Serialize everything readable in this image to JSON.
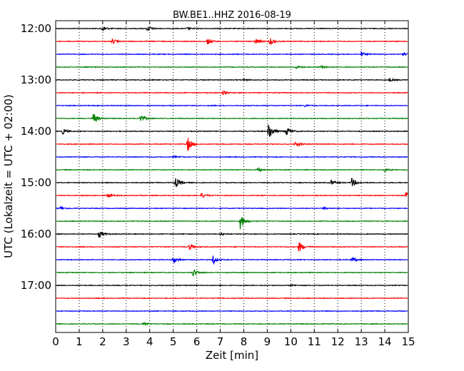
{
  "chart_data": {
    "type": "line",
    "title": "BW.BE1..HHZ 2016-08-19",
    "xlabel": "Zeit  [min]",
    "ylabel": "UTC (Lokalzeit = UTC + 02:00)",
    "xlim": [
      0,
      15
    ],
    "x_ticks": [
      "0",
      "1",
      "2",
      "3",
      "4",
      "5",
      "6",
      "7",
      "8",
      "9",
      "10",
      "11",
      "12",
      "13",
      "14",
      "15"
    ],
    "y_tick_labels": [
      {
        "row": 0,
        "label": "12:00"
      },
      {
        "row": 4,
        "label": "13:00"
      },
      {
        "row": 8,
        "label": "14:00"
      },
      {
        "row": 12,
        "label": "15:00"
      },
      {
        "row": 16,
        "label": "16:00"
      },
      {
        "row": 20,
        "label": "17:00"
      }
    ],
    "grid": "vertical dotted",
    "trace_colors": [
      "#000000",
      "#ff0000",
      "#0000ff",
      "#008000"
    ],
    "series": [
      {
        "start": "12:00",
        "color": "#000000",
        "events": [
          {
            "t": 1.95,
            "a": 0.45
          },
          {
            "t": 3.9,
            "a": 0.5
          },
          {
            "t": 5.6,
            "a": 0.15
          }
        ]
      },
      {
        "start": "12:15",
        "color": "#ff0000",
        "events": [
          {
            "t": 2.4,
            "a": 0.45
          },
          {
            "t": 6.45,
            "a": 0.5
          },
          {
            "t": 8.5,
            "a": 0.5
          },
          {
            "t": 9.1,
            "a": 0.55
          }
        ]
      },
      {
        "start": "12:30",
        "color": "#0000ff",
        "events": [
          {
            "t": 13.0,
            "a": 0.35
          },
          {
            "t": 14.8,
            "a": 0.3
          }
        ]
      },
      {
        "start": "12:45",
        "color": "#008000",
        "events": [
          {
            "t": 10.2,
            "a": 0.25
          },
          {
            "t": 11.3,
            "a": 0.15
          }
        ]
      },
      {
        "start": "13:00",
        "color": "#000000",
        "events": [
          {
            "t": 8.0,
            "a": 0.15
          },
          {
            "t": 14.2,
            "a": 0.2
          }
        ]
      },
      {
        "start": "13:15",
        "color": "#ff0000",
        "events": [
          {
            "t": 7.1,
            "a": 0.3
          }
        ]
      },
      {
        "start": "13:30",
        "color": "#0000ff",
        "events": [
          {
            "t": 10.6,
            "a": 0.15
          }
        ]
      },
      {
        "start": "13:45",
        "color": "#008000",
        "events": [
          {
            "t": 1.6,
            "a": 0.9
          },
          {
            "t": 3.6,
            "a": 0.7
          }
        ]
      },
      {
        "start": "14:00",
        "color": "#000000",
        "events": [
          {
            "t": 0.3,
            "a": 0.4
          },
          {
            "t": 9.05,
            "a": 1.6
          },
          {
            "t": 9.8,
            "a": 0.8
          }
        ]
      },
      {
        "start": "14:15",
        "color": "#ff0000",
        "events": [
          {
            "t": 5.6,
            "a": 1.2
          },
          {
            "t": 10.2,
            "a": 0.5
          }
        ]
      },
      {
        "start": "14:30",
        "color": "#0000ff",
        "events": [
          {
            "t": 5.0,
            "a": 0.15
          }
        ]
      },
      {
        "start": "14:45",
        "color": "#008000",
        "events": [
          {
            "t": 8.6,
            "a": 0.35
          },
          {
            "t": 14.0,
            "a": 0.3
          }
        ]
      },
      {
        "start": "15:00",
        "color": "#000000",
        "events": [
          {
            "t": 5.1,
            "a": 0.8
          },
          {
            "t": 11.7,
            "a": 0.45
          },
          {
            "t": 12.6,
            "a": 0.7
          }
        ]
      },
      {
        "start": "15:15",
        "color": "#ff0000",
        "events": [
          {
            "t": 2.2,
            "a": 0.35
          },
          {
            "t": 6.2,
            "a": 0.4
          },
          {
            "t": 14.9,
            "a": 0.45
          }
        ]
      },
      {
        "start": "15:30",
        "color": "#0000ff",
        "events": [
          {
            "t": 0.2,
            "a": 0.3
          },
          {
            "t": 11.4,
            "a": 0.2
          }
        ]
      },
      {
        "start": "15:45",
        "color": "#008000",
        "events": [
          {
            "t": 7.85,
            "a": 1.3
          }
        ]
      },
      {
        "start": "16:00",
        "color": "#000000",
        "events": [
          {
            "t": 1.85,
            "a": 0.6
          },
          {
            "t": 7.0,
            "a": 0.2
          }
        ]
      },
      {
        "start": "16:15",
        "color": "#ff0000",
        "events": [
          {
            "t": 5.7,
            "a": 0.55
          },
          {
            "t": 10.35,
            "a": 0.85
          }
        ]
      },
      {
        "start": "16:30",
        "color": "#0000ff",
        "events": [
          {
            "t": 5.0,
            "a": 0.6
          },
          {
            "t": 6.7,
            "a": 0.65
          },
          {
            "t": 12.6,
            "a": 0.45
          }
        ]
      },
      {
        "start": "16:45",
        "color": "#008000",
        "events": [
          {
            "t": 5.85,
            "a": 0.6
          }
        ]
      },
      {
        "start": "17:00",
        "color": "#000000",
        "events": [
          {
            "t": 10.0,
            "a": 0.15
          }
        ]
      },
      {
        "start": "17:15",
        "color": "#ff0000",
        "events": []
      },
      {
        "start": "17:30",
        "color": "#0000ff",
        "events": []
      },
      {
        "start": "17:45",
        "color": "#008000",
        "events": [
          {
            "t": 3.75,
            "a": 0.25
          }
        ]
      }
    ]
  }
}
